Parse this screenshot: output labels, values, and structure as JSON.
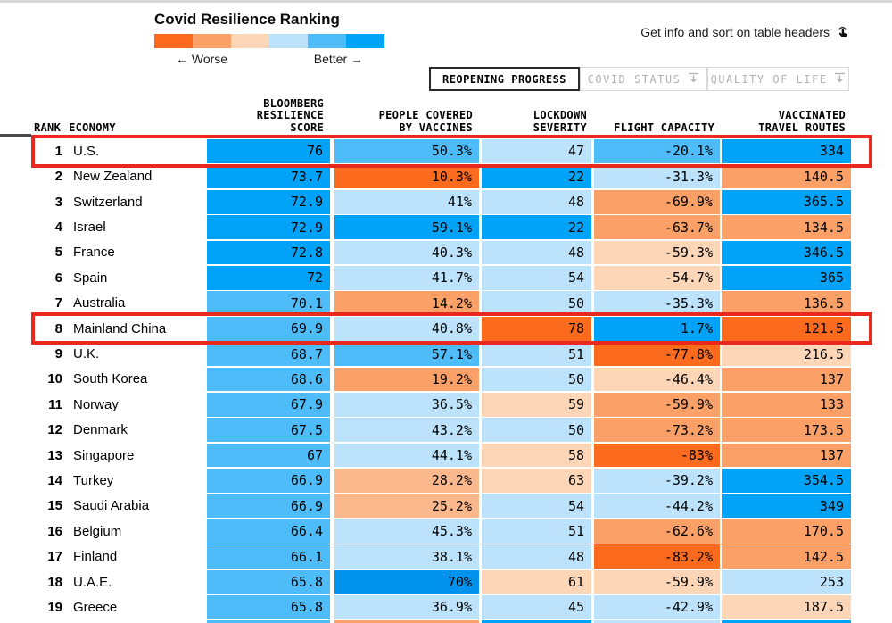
{
  "header": {
    "title": "Covid Resilience Ranking",
    "worse_label": "← Worse",
    "better_label": "Better →",
    "info_hint": "Get info and sort on table headers",
    "legend_colors": [
      "#fb6a1d",
      "#fba167",
      "#fdd6b7",
      "#bce3fb",
      "#4fbcfa",
      "#00a3f7"
    ]
  },
  "tabs": [
    {
      "label": "REOPENING PROGRESS",
      "active": true
    },
    {
      "label": "COVID STATUS",
      "active": false
    },
    {
      "label": "QUALITY OF LIFE",
      "active": false
    }
  ],
  "palette": {
    "o3": "#fb6a1d",
    "o2": "#fba167",
    "o2l": "#fcb88d",
    "o1": "#fdd6b7",
    "b1": "#bce3fb",
    "b2": "#4fbcfa",
    "b3": "#00a3f7",
    "b4": "#0093ee"
  },
  "highlight_color": "#e9291d",
  "table": {
    "rank_header": "RANK",
    "economy_header": "ECONOMY",
    "columns": [
      {
        "lines": [
          "BLOOMBERG",
          "RESILIENCE",
          "SCORE"
        ]
      },
      {
        "lines": [
          "PEOPLE COVERED",
          "BY VACCINES"
        ]
      },
      {
        "lines": [
          "LOCKDOWN",
          "SEVERITY"
        ]
      },
      {
        "lines": [
          "FLIGHT CAPACITY"
        ]
      },
      {
        "lines": [
          "VACCINATED",
          "TRAVEL ROUTES"
        ]
      }
    ],
    "rows": [
      {
        "rank": "1",
        "economy": "U.S.",
        "highlight": true,
        "cells": [
          [
            "76",
            "b3"
          ],
          [
            "50.3%",
            "b2"
          ],
          [
            "47",
            "b1"
          ],
          [
            "-20.1%",
            "b2"
          ],
          [
            "334",
            "b3"
          ]
        ]
      },
      {
        "rank": "2",
        "economy": "New Zealand",
        "cells": [
          [
            "73.7",
            "b3"
          ],
          [
            "10.3%",
            "o3"
          ],
          [
            "22",
            "b3"
          ],
          [
            "-31.3%",
            "b1"
          ],
          [
            "140.5",
            "o2"
          ]
        ]
      },
      {
        "rank": "3",
        "economy": "Switzerland",
        "cells": [
          [
            "72.9",
            "b3"
          ],
          [
            "41%",
            "b1"
          ],
          [
            "48",
            "b1"
          ],
          [
            "-69.9%",
            "o2"
          ],
          [
            "365.5",
            "b3"
          ]
        ]
      },
      {
        "rank": "4",
        "economy": "Israel",
        "cells": [
          [
            "72.9",
            "b3"
          ],
          [
            "59.1%",
            "b3"
          ],
          [
            "22",
            "b3"
          ],
          [
            "-63.7%",
            "o2"
          ],
          [
            "134.5",
            "o2"
          ]
        ]
      },
      {
        "rank": "5",
        "economy": "France",
        "cells": [
          [
            "72.8",
            "b3"
          ],
          [
            "40.3%",
            "b1"
          ],
          [
            "48",
            "b1"
          ],
          [
            "-59.3%",
            "o1"
          ],
          [
            "346.5",
            "b3"
          ]
        ]
      },
      {
        "rank": "6",
        "economy": "Spain",
        "cells": [
          [
            "72",
            "b3"
          ],
          [
            "41.7%",
            "b1"
          ],
          [
            "54",
            "b1"
          ],
          [
            "-54.7%",
            "o1"
          ],
          [
            "365",
            "b3"
          ]
        ]
      },
      {
        "rank": "7",
        "economy": "Australia",
        "cells": [
          [
            "70.1",
            "b2"
          ],
          [
            "14.2%",
            "o2"
          ],
          [
            "50",
            "b1"
          ],
          [
            "-35.3%",
            "b1"
          ],
          [
            "136.5",
            "o2"
          ]
        ]
      },
      {
        "rank": "8",
        "economy": "Mainland China",
        "highlight": true,
        "cells": [
          [
            "69.9",
            "b2"
          ],
          [
            "40.8%",
            "b1"
          ],
          [
            "78",
            "o3"
          ],
          [
            "1.7%",
            "b3"
          ],
          [
            "121.5",
            "o3"
          ]
        ]
      },
      {
        "rank": "9",
        "economy": "U.K.",
        "cells": [
          [
            "68.7",
            "b2"
          ],
          [
            "57.1%",
            "b2"
          ],
          [
            "51",
            "b1"
          ],
          [
            "-77.8%",
            "o3"
          ],
          [
            "216.5",
            "o1"
          ]
        ]
      },
      {
        "rank": "10",
        "economy": "South Korea",
        "cells": [
          [
            "68.6",
            "b2"
          ],
          [
            "19.2%",
            "o2"
          ],
          [
            "50",
            "b1"
          ],
          [
            "-46.4%",
            "o1"
          ],
          [
            "137",
            "o2"
          ]
        ]
      },
      {
        "rank": "11",
        "economy": "Norway",
        "cells": [
          [
            "67.9",
            "b2"
          ],
          [
            "36.5%",
            "b1"
          ],
          [
            "59",
            "o1"
          ],
          [
            "-59.9%",
            "o2"
          ],
          [
            "133",
            "o2"
          ]
        ]
      },
      {
        "rank": "12",
        "economy": "Denmark",
        "cells": [
          [
            "67.5",
            "b2"
          ],
          [
            "43.2%",
            "b1"
          ],
          [
            "50",
            "b1"
          ],
          [
            "-73.2%",
            "o2"
          ],
          [
            "173.5",
            "o2"
          ]
        ]
      },
      {
        "rank": "13",
        "economy": "Singapore",
        "cells": [
          [
            "67",
            "b2"
          ],
          [
            "44.1%",
            "b1"
          ],
          [
            "58",
            "o1"
          ],
          [
            "-83%",
            "o3"
          ],
          [
            "137",
            "o2"
          ]
        ]
      },
      {
        "rank": "14",
        "economy": "Turkey",
        "cells": [
          [
            "66.9",
            "b2"
          ],
          [
            "28.2%",
            "o2l"
          ],
          [
            "63",
            "o1"
          ],
          [
            "-39.2%",
            "b1"
          ],
          [
            "354.5",
            "b3"
          ]
        ]
      },
      {
        "rank": "15",
        "economy": "Saudi Arabia",
        "cells": [
          [
            "66.9",
            "b2"
          ],
          [
            "25.2%",
            "o2l"
          ],
          [
            "54",
            "b1"
          ],
          [
            "-44.2%",
            "b1"
          ],
          [
            "349",
            "b3"
          ]
        ]
      },
      {
        "rank": "16",
        "economy": "Belgium",
        "cells": [
          [
            "66.4",
            "b2"
          ],
          [
            "45.3%",
            "b1"
          ],
          [
            "51",
            "b1"
          ],
          [
            "-62.6%",
            "o2"
          ],
          [
            "170.5",
            "o2"
          ]
        ]
      },
      {
        "rank": "17",
        "economy": "Finland",
        "cells": [
          [
            "66.1",
            "b2"
          ],
          [
            "38.1%",
            "b1"
          ],
          [
            "48",
            "b1"
          ],
          [
            "-83.2%",
            "o3"
          ],
          [
            "142.5",
            "o2"
          ]
        ]
      },
      {
        "rank": "18",
        "economy": "U.A.E.",
        "cells": [
          [
            "65.8",
            "b2"
          ],
          [
            "70%",
            "b4"
          ],
          [
            "61",
            "o1"
          ],
          [
            "-59.9%",
            "o1"
          ],
          [
            "253",
            "b1"
          ]
        ]
      },
      {
        "rank": "19",
        "economy": "Greece",
        "cells": [
          [
            "65.8",
            "b2"
          ],
          [
            "36.9%",
            "b1"
          ],
          [
            "45",
            "b1"
          ],
          [
            "-42.9%",
            "b1"
          ],
          [
            "187.5",
            "o1"
          ]
        ]
      }
    ],
    "partial_row_colors": [
      "b2",
      "o2",
      "b3",
      "b1",
      "b3"
    ]
  }
}
